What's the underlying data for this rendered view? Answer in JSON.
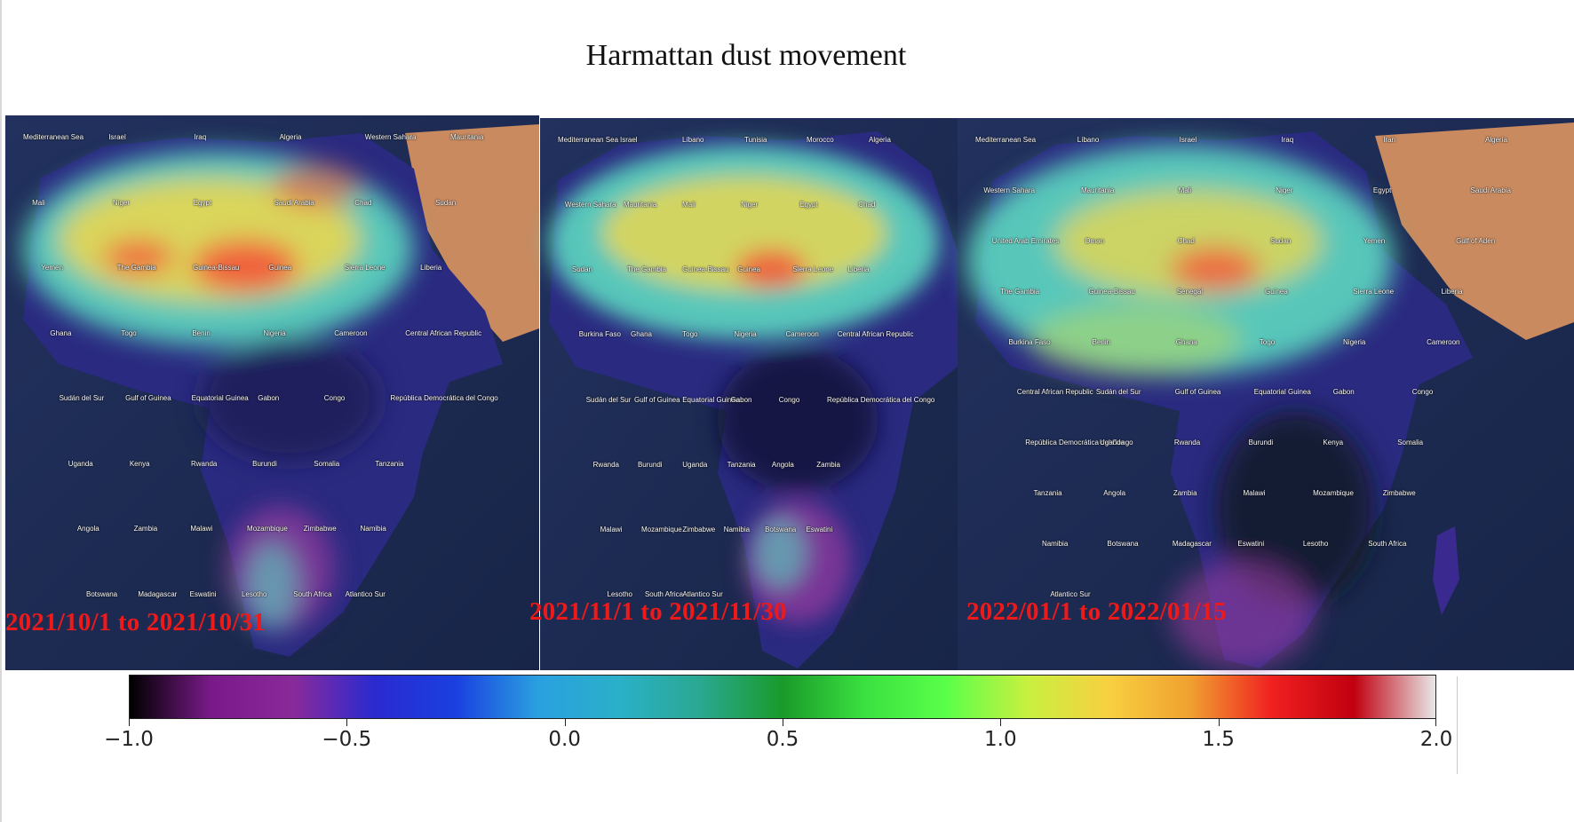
{
  "title": "Harmattan dust movement",
  "panels": [
    {
      "date_range": "2021/10/1 to 2021/10/31",
      "labels": [
        "Mediterranean Sea",
        "Israel",
        "Iraq",
        "Algeria",
        "Western Sahara",
        "Mauritania",
        "Mali",
        "Niger",
        "Egypt",
        "Saudi Arabia",
        "Chad",
        "Sudan",
        "Yemen",
        "The Gambia",
        "Guinea-Bissau",
        "Guinea",
        "Sierra Leone",
        "Liberia",
        "Ghana",
        "Togo",
        "Benin",
        "Nigeria",
        "Cameroon",
        "Central African Republic",
        "Sudán del Sur",
        "Gulf of Guinea",
        "Equatorial Guinea",
        "Gabon",
        "Congo",
        "República Democrática del Congo",
        "Uganda",
        "Kenya",
        "Rwanda",
        "Burundi",
        "Somalia",
        "Tanzania",
        "Angola",
        "Zambia",
        "Malawi",
        "Mozambique",
        "Zimbabwe",
        "Namibia",
        "Botswana",
        "Madagascar",
        "Eswatini",
        "Lesotho",
        "South Africa",
        "Atlantico Sur"
      ]
    },
    {
      "date_range": "2021/11/1 to 2021/11/30",
      "labels": [
        "Mediterranean Sea",
        "Israel",
        "Líbano",
        "Tunisia",
        "Morocco",
        "Algeria",
        "Western Sahara",
        "Mauritania",
        "Mali",
        "Niger",
        "Egypt",
        "Chad",
        "Sudan",
        "The Gambia",
        "Guinea-Bissau",
        "Guinea",
        "Sierra Leone",
        "Liberia",
        "Burkina Faso",
        "Ghana",
        "Togo",
        "Nigeria",
        "Cameroon",
        "Central African Republic",
        "Sudán del Sur",
        "Gulf of Guinea",
        "Equatorial Guinea",
        "Gabon",
        "Congo",
        "República Democrática del Congo",
        "Rwanda",
        "Burundi",
        "Uganda",
        "Tanzania",
        "Angola",
        "Zambia",
        "Malawi",
        "Mozambique",
        "Zimbabwe",
        "Namibia",
        "Botswana",
        "Eswatini",
        "Lesotho",
        "South Africa",
        "Atlantico Sur"
      ]
    },
    {
      "date_range": "2022/01/1 to 2022/01/15",
      "labels": [
        "Mediterranean Sea",
        "Líbano",
        "Israel",
        "Iraq",
        "Iran",
        "Algeria",
        "Western Sahara",
        "Mauritania",
        "Mali",
        "Niger",
        "Egypt",
        "Saudi Arabia",
        "United Arab Emirates",
        "Oman",
        "Chad",
        "Sudan",
        "Yemen",
        "Gulf of Aden",
        "The Gambia",
        "Guinea-Bissau",
        "Senegal",
        "Guinea",
        "Sierra Leone",
        "Liberia",
        "Burkina Faso",
        "Benin",
        "Ghana",
        "Togo",
        "Nigeria",
        "Cameroon",
        "Central African Republic",
        "Sudán del Sur",
        "Gulf of Guinea",
        "Equatorial Guinea",
        "Gabon",
        "Congo",
        "República Democrática del Congo",
        "Uganda",
        "Rwanda",
        "Burundi",
        "Kenya",
        "Somalia",
        "Tanzania",
        "Angola",
        "Zambia",
        "Malawi",
        "Mozambique",
        "Zimbabwe",
        "Namibia",
        "Botswana",
        "Madagascar",
        "Eswatini",
        "Lesotho",
        "South Africa",
        "Atlantico Sur"
      ]
    }
  ],
  "colorbar": {
    "min": -1.0,
    "max": 2.0,
    "ticks": [
      "−1.0",
      "−0.5",
      "0.0",
      "0.5",
      "1.0",
      "1.5",
      "2.0"
    ],
    "colors": [
      "#000000",
      "#7a1a8a",
      "#8a2a9a",
      "#2a2ad0",
      "#1a40e0",
      "#2aa0e0",
      "#2ab0c8",
      "#2aa890",
      "#1a9a2a",
      "#3ae040",
      "#5aff4a",
      "#c8f040",
      "#f8d040",
      "#f0a030",
      "#f02020",
      "#c00010",
      "#e8e8e8"
    ]
  }
}
